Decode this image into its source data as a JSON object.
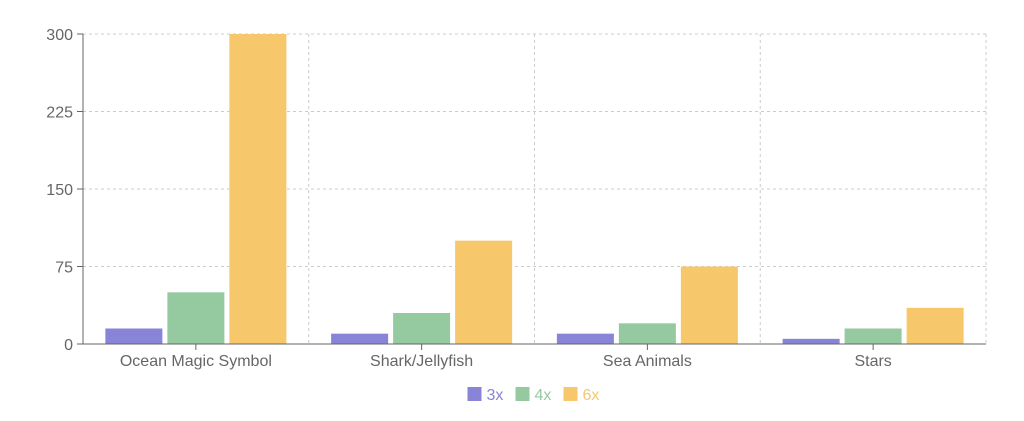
{
  "chart_data": {
    "type": "bar",
    "categories": [
      "Ocean Magic Symbol",
      "Shark/Jellyfish",
      "Sea Animals",
      "Stars"
    ],
    "series": [
      {
        "name": "3x",
        "values": [
          15,
          10,
          10,
          5
        ],
        "color": "#8884d8"
      },
      {
        "name": "4x",
        "values": [
          50,
          30,
          20,
          15
        ],
        "color": "#95c9a0"
      },
      {
        "name": "6x",
        "values": [
          300,
          100,
          75,
          35
        ],
        "color": "#f7c76b"
      }
    ],
    "ylim": [
      0,
      300
    ],
    "yticks": [
      0,
      75,
      150,
      225,
      300
    ],
    "grid": true,
    "legend_position": "bottom-center"
  }
}
